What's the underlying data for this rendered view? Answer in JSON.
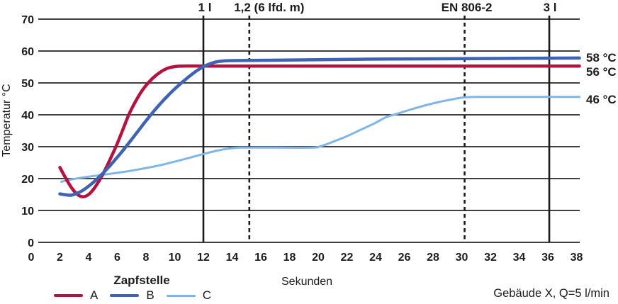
{
  "chart_data": {
    "type": "line",
    "title": "",
    "xlabel": "Sekunden",
    "ylabel": "Temperatur °C",
    "footnote": "Gebäude X, Q=5 l/min",
    "xlim": [
      0,
      38
    ],
    "ylim": [
      0,
      70
    ],
    "x_ticks": [
      0,
      2,
      4,
      6,
      8,
      10,
      12,
      14,
      16,
      18,
      20,
      22,
      24,
      26,
      28,
      30,
      32,
      34,
      36,
      38
    ],
    "y_ticks": [
      0,
      10,
      20,
      30,
      40,
      50,
      60,
      70
    ],
    "grid": "horizontal-only",
    "legend": {
      "title": "Zapfstelle",
      "position": "bottom-left",
      "entries": [
        {
          "label": "A",
          "color": "#b5123f"
        },
        {
          "label": "B",
          "color": "#3f63b3"
        },
        {
          "label": "C",
          "color": "#7fb5e9"
        }
      ]
    },
    "markers": [
      {
        "x": 12,
        "style": "solid",
        "label": "1 l",
        "label_dx": 2
      },
      {
        "x": 15.2,
        "style": "dashed",
        "label": "1,2 (6 lfd. m)",
        "label_dx": 28
      },
      {
        "x": 30.2,
        "style": "dashed",
        "label": "EN 806-2",
        "label_dx": 3
      },
      {
        "x": 36.1,
        "style": "solid",
        "label": "3 l",
        "label_dx": 1
      }
    ],
    "series": [
      {
        "name": "A",
        "color": "#b5123f",
        "stroke_width": 4.5,
        "end_label": "56 °C",
        "end_label_at": 53.6,
        "points": [
          [
            2,
            23.5
          ],
          [
            2.4,
            20.2
          ],
          [
            2.8,
            17.2
          ],
          [
            3.2,
            15.1
          ],
          [
            3.6,
            14.3
          ],
          [
            4,
            15
          ],
          [
            4.4,
            17
          ],
          [
            4.8,
            19.8
          ],
          [
            5.2,
            23.2
          ],
          [
            5.6,
            27
          ],
          [
            6,
            31
          ],
          [
            6.4,
            35.5
          ],
          [
            6.8,
            40
          ],
          [
            7.2,
            43.6
          ],
          [
            7.6,
            46.7
          ],
          [
            8,
            49.2
          ],
          [
            8.5,
            51.6
          ],
          [
            9,
            53.4
          ],
          [
            9.5,
            54.6
          ],
          [
            10,
            55.1
          ],
          [
            10.6,
            55.3
          ],
          [
            12,
            55.3
          ],
          [
            16,
            55.3
          ],
          [
            24,
            55.3
          ],
          [
            32,
            55.3
          ],
          [
            38.2,
            55.3
          ]
        ]
      },
      {
        "name": "B",
        "color": "#3f63b3",
        "stroke_width": 4.5,
        "end_label": "58 °C",
        "end_label_at": 58,
        "points": [
          [
            2,
            15.2
          ],
          [
            2.4,
            14.9
          ],
          [
            2.8,
            14.8
          ],
          [
            3.2,
            15.4
          ],
          [
            3.6,
            16.3
          ],
          [
            4,
            17.6
          ],
          [
            4.5,
            19.5
          ],
          [
            5,
            21.7
          ],
          [
            5.5,
            24.1
          ],
          [
            6,
            26.7
          ],
          [
            6.5,
            29.4
          ],
          [
            7,
            32.3
          ],
          [
            7.5,
            35.2
          ],
          [
            8,
            38.1
          ],
          [
            8.5,
            40.9
          ],
          [
            9,
            43.5
          ],
          [
            9.5,
            45.9
          ],
          [
            10,
            48.1
          ],
          [
            10.5,
            50.1
          ],
          [
            11,
            52
          ],
          [
            11.5,
            53.7
          ],
          [
            12,
            55.1
          ],
          [
            12.4,
            55.9
          ],
          [
            12.8,
            56.5
          ],
          [
            13.2,
            56.8
          ],
          [
            14,
            57
          ],
          [
            16,
            57.1
          ],
          [
            20,
            57.3
          ],
          [
            25,
            57.5
          ],
          [
            30,
            57.6
          ],
          [
            34,
            57.7
          ],
          [
            38.2,
            57.8
          ]
        ]
      },
      {
        "name": "C",
        "color": "#7fb5e9",
        "stroke_width": 3,
        "end_label": "46 °C",
        "end_label_at": 44.9,
        "points": [
          [
            2.1,
            19
          ],
          [
            3,
            19.9
          ],
          [
            4,
            20.6
          ],
          [
            5,
            21.2
          ],
          [
            6,
            21.8
          ],
          [
            7,
            22.5
          ],
          [
            8,
            23.3
          ],
          [
            9,
            24.2
          ],
          [
            10,
            25.3
          ],
          [
            11,
            26.5
          ],
          [
            12,
            27.7
          ],
          [
            13,
            28.8
          ],
          [
            13.8,
            29.4
          ],
          [
            14.6,
            29.7
          ],
          [
            17,
            29.7
          ],
          [
            19.6,
            29.7
          ],
          [
            20.2,
            30.2
          ],
          [
            21,
            31.5
          ],
          [
            22,
            33.3
          ],
          [
            23,
            35.4
          ],
          [
            24,
            37.5
          ],
          [
            24.7,
            39.2
          ],
          [
            25.4,
            40.2
          ],
          [
            26.4,
            41.6
          ],
          [
            27.4,
            42.9
          ],
          [
            28.4,
            44
          ],
          [
            29.4,
            44.9
          ],
          [
            30.2,
            45.5
          ],
          [
            31,
            45.6
          ],
          [
            34,
            45.6
          ],
          [
            38.2,
            45.6
          ]
        ]
      }
    ]
  },
  "colors": {
    "grid": "#404040",
    "marker_line": "#1a1a1a",
    "text": "#1c1c1e",
    "background": "#ffffff"
  }
}
